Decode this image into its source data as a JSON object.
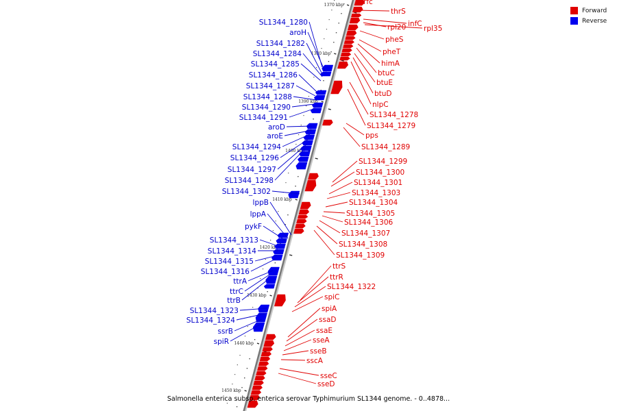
{
  "legend": {
    "forward": {
      "label": "Forward",
      "color": "#e00000"
    },
    "reverse": {
      "label": "Reverse",
      "color": "#0000ee"
    }
  },
  "caption": "Salmonella enterica subsp. enterica serovar Typhimurium SL1344 genome. - 0..4878...",
  "ticks": [
    "1370 kbp",
    "1380 kbp",
    "1390 kbp",
    "1400 kbp",
    "1410 kbp",
    "1420 kbp",
    "1430 kbp",
    "1440 kbp",
    "1450 kbp"
  ],
  "forward_labels": [
    "rfc",
    "thrS",
    "infC",
    "rpl20",
    "rpl35",
    "pheS",
    "pheT",
    "himA",
    "btuC",
    "btuE",
    "btuD",
    "nlpC",
    "SL1344_1278",
    "SL1344_1279",
    "pps",
    "SL1344_1289",
    "SL1344_1299",
    "SL1344_1300",
    "SL1344_1301",
    "SL1344_1303",
    "SL1344_1304",
    "SL1344_1305",
    "SL1344_1306",
    "SL1344_1307",
    "SL1344_1308",
    "SL1344_1309",
    "ttrS",
    "ttrR",
    "SL1344_1322",
    "spiC",
    "spiA",
    "ssaD",
    "ssaE",
    "sseA",
    "sseB",
    "sscA",
    "sseC",
    "sseD"
  ],
  "reverse_labels": [
    "SL1344_1280",
    "aroH",
    "SL1344_1282",
    "SL1344_1284",
    "SL1344_1285",
    "SL1344_1286",
    "SL1344_1287",
    "SL1344_1288",
    "SL1344_1290",
    "SL1344_1291",
    "aroD",
    "aroE",
    "SL1344_1294",
    "SL1344_1296",
    "SL1344_1297",
    "SL1344_1298",
    "SL1344_1302",
    "lppB",
    "lppA",
    "pykF",
    "SL1344_1313",
    "SL1344_1314",
    "SL1344_1315",
    "SL1344_1316",
    "ttrA",
    "ttrC",
    "ttrB",
    "SL1344_1323",
    "SL1344_1324",
    "ssrB",
    "spiR"
  ]
}
